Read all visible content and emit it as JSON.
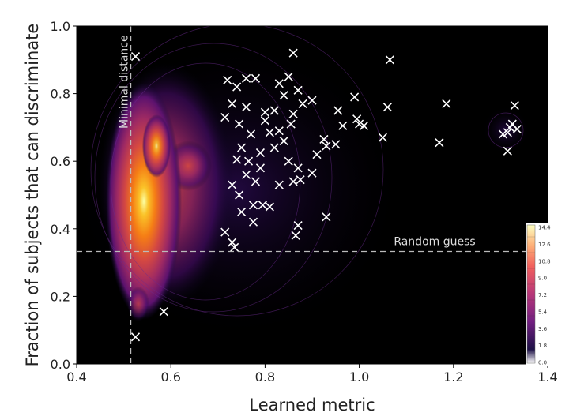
{
  "chart_data": {
    "type": "scatter",
    "xlabel": "Learned metric",
    "ylabel": "Fraction of subjects that can discriminate",
    "xlim": [
      0.4,
      1.4
    ],
    "ylim": [
      0.0,
      1.0
    ],
    "xticks": [
      "0.4",
      "0.6",
      "0.8",
      "1.0",
      "1.2",
      "1.4"
    ],
    "yticks": [
      "0.0",
      "0.2",
      "0.4",
      "0.6",
      "0.8",
      "1.0"
    ],
    "background": "#000000",
    "marker": "x",
    "marker_color": "#ffffff",
    "overlay": "density contours (inferno colormap)",
    "colorbar": {
      "ticks": [
        "14.4",
        "12.6",
        "10.8",
        "9.0",
        "7.2",
        "5.4",
        "3.6",
        "1.8",
        "0.0"
      ],
      "range": [
        0.0,
        14.4
      ],
      "placement": "bottom-right inset"
    },
    "reference_lines": [
      {
        "orientation": "vertical",
        "value": 0.515,
        "label": "Minimal distance",
        "style": "dashed"
      },
      {
        "orientation": "horizontal",
        "value": 0.333,
        "label": "Random guess",
        "style": "dashed"
      }
    ],
    "points": [
      {
        "x": 0.525,
        "y": 0.91
      },
      {
        "x": 0.525,
        "y": 0.08
      },
      {
        "x": 0.585,
        "y": 0.155
      },
      {
        "x": 0.72,
        "y": 0.84
      },
      {
        "x": 0.74,
        "y": 0.82
      },
      {
        "x": 0.76,
        "y": 0.845
      },
      {
        "x": 0.78,
        "y": 0.845
      },
      {
        "x": 0.83,
        "y": 0.83
      },
      {
        "x": 0.85,
        "y": 0.85
      },
      {
        "x": 0.86,
        "y": 0.92
      },
      {
        "x": 0.84,
        "y": 0.795
      },
      {
        "x": 0.87,
        "y": 0.81
      },
      {
        "x": 0.9,
        "y": 0.78
      },
      {
        "x": 0.88,
        "y": 0.77
      },
      {
        "x": 0.73,
        "y": 0.77
      },
      {
        "x": 0.76,
        "y": 0.76
      },
      {
        "x": 0.8,
        "y": 0.745
      },
      {
        "x": 0.82,
        "y": 0.75
      },
      {
        "x": 0.715,
        "y": 0.73
      },
      {
        "x": 0.745,
        "y": 0.71
      },
      {
        "x": 0.8,
        "y": 0.72
      },
      {
        "x": 0.855,
        "y": 0.71
      },
      {
        "x": 0.86,
        "y": 0.74
      },
      {
        "x": 0.83,
        "y": 0.69
      },
      {
        "x": 0.81,
        "y": 0.685
      },
      {
        "x": 0.77,
        "y": 0.68
      },
      {
        "x": 0.75,
        "y": 0.64
      },
      {
        "x": 0.74,
        "y": 0.605
      },
      {
        "x": 0.765,
        "y": 0.6
      },
      {
        "x": 0.79,
        "y": 0.625
      },
      {
        "x": 0.82,
        "y": 0.64
      },
      {
        "x": 0.84,
        "y": 0.66
      },
      {
        "x": 0.79,
        "y": 0.58
      },
      {
        "x": 0.76,
        "y": 0.56
      },
      {
        "x": 0.78,
        "y": 0.54
      },
      {
        "x": 0.83,
        "y": 0.53
      },
      {
        "x": 0.85,
        "y": 0.6
      },
      {
        "x": 0.87,
        "y": 0.58
      },
      {
        "x": 0.86,
        "y": 0.54
      },
      {
        "x": 0.875,
        "y": 0.545
      },
      {
        "x": 0.9,
        "y": 0.565
      },
      {
        "x": 0.73,
        "y": 0.53
      },
      {
        "x": 0.745,
        "y": 0.5
      },
      {
        "x": 0.775,
        "y": 0.47
      },
      {
        "x": 0.795,
        "y": 0.47
      },
      {
        "x": 0.81,
        "y": 0.465
      },
      {
        "x": 0.75,
        "y": 0.45
      },
      {
        "x": 0.775,
        "y": 0.42
      },
      {
        "x": 0.715,
        "y": 0.39
      },
      {
        "x": 0.73,
        "y": 0.36
      },
      {
        "x": 0.735,
        "y": 0.345
      },
      {
        "x": 0.865,
        "y": 0.38
      },
      {
        "x": 0.87,
        "y": 0.41
      },
      {
        "x": 0.93,
        "y": 0.435
      },
      {
        "x": 0.91,
        "y": 0.62
      },
      {
        "x": 0.925,
        "y": 0.665
      },
      {
        "x": 0.93,
        "y": 0.645
      },
      {
        "x": 0.95,
        "y": 0.65
      },
      {
        "x": 0.955,
        "y": 0.75
      },
      {
        "x": 0.965,
        "y": 0.705
      },
      {
        "x": 0.99,
        "y": 0.79
      },
      {
        "x": 1.0,
        "y": 0.71
      },
      {
        "x": 1.01,
        "y": 0.705
      },
      {
        "x": 0.995,
        "y": 0.725
      },
      {
        "x": 1.05,
        "y": 0.67
      },
      {
        "x": 1.06,
        "y": 0.76
      },
      {
        "x": 1.065,
        "y": 0.9
      },
      {
        "x": 1.17,
        "y": 0.655
      },
      {
        "x": 1.185,
        "y": 0.77
      },
      {
        "x": 1.305,
        "y": 0.68
      },
      {
        "x": 1.315,
        "y": 0.63
      },
      {
        "x": 1.32,
        "y": 0.7
      },
      {
        "x": 1.325,
        "y": 0.71
      },
      {
        "x": 1.33,
        "y": 0.765
      },
      {
        "x": 1.335,
        "y": 0.695
      },
      {
        "x": 1.315,
        "y": 0.685
      }
    ]
  }
}
